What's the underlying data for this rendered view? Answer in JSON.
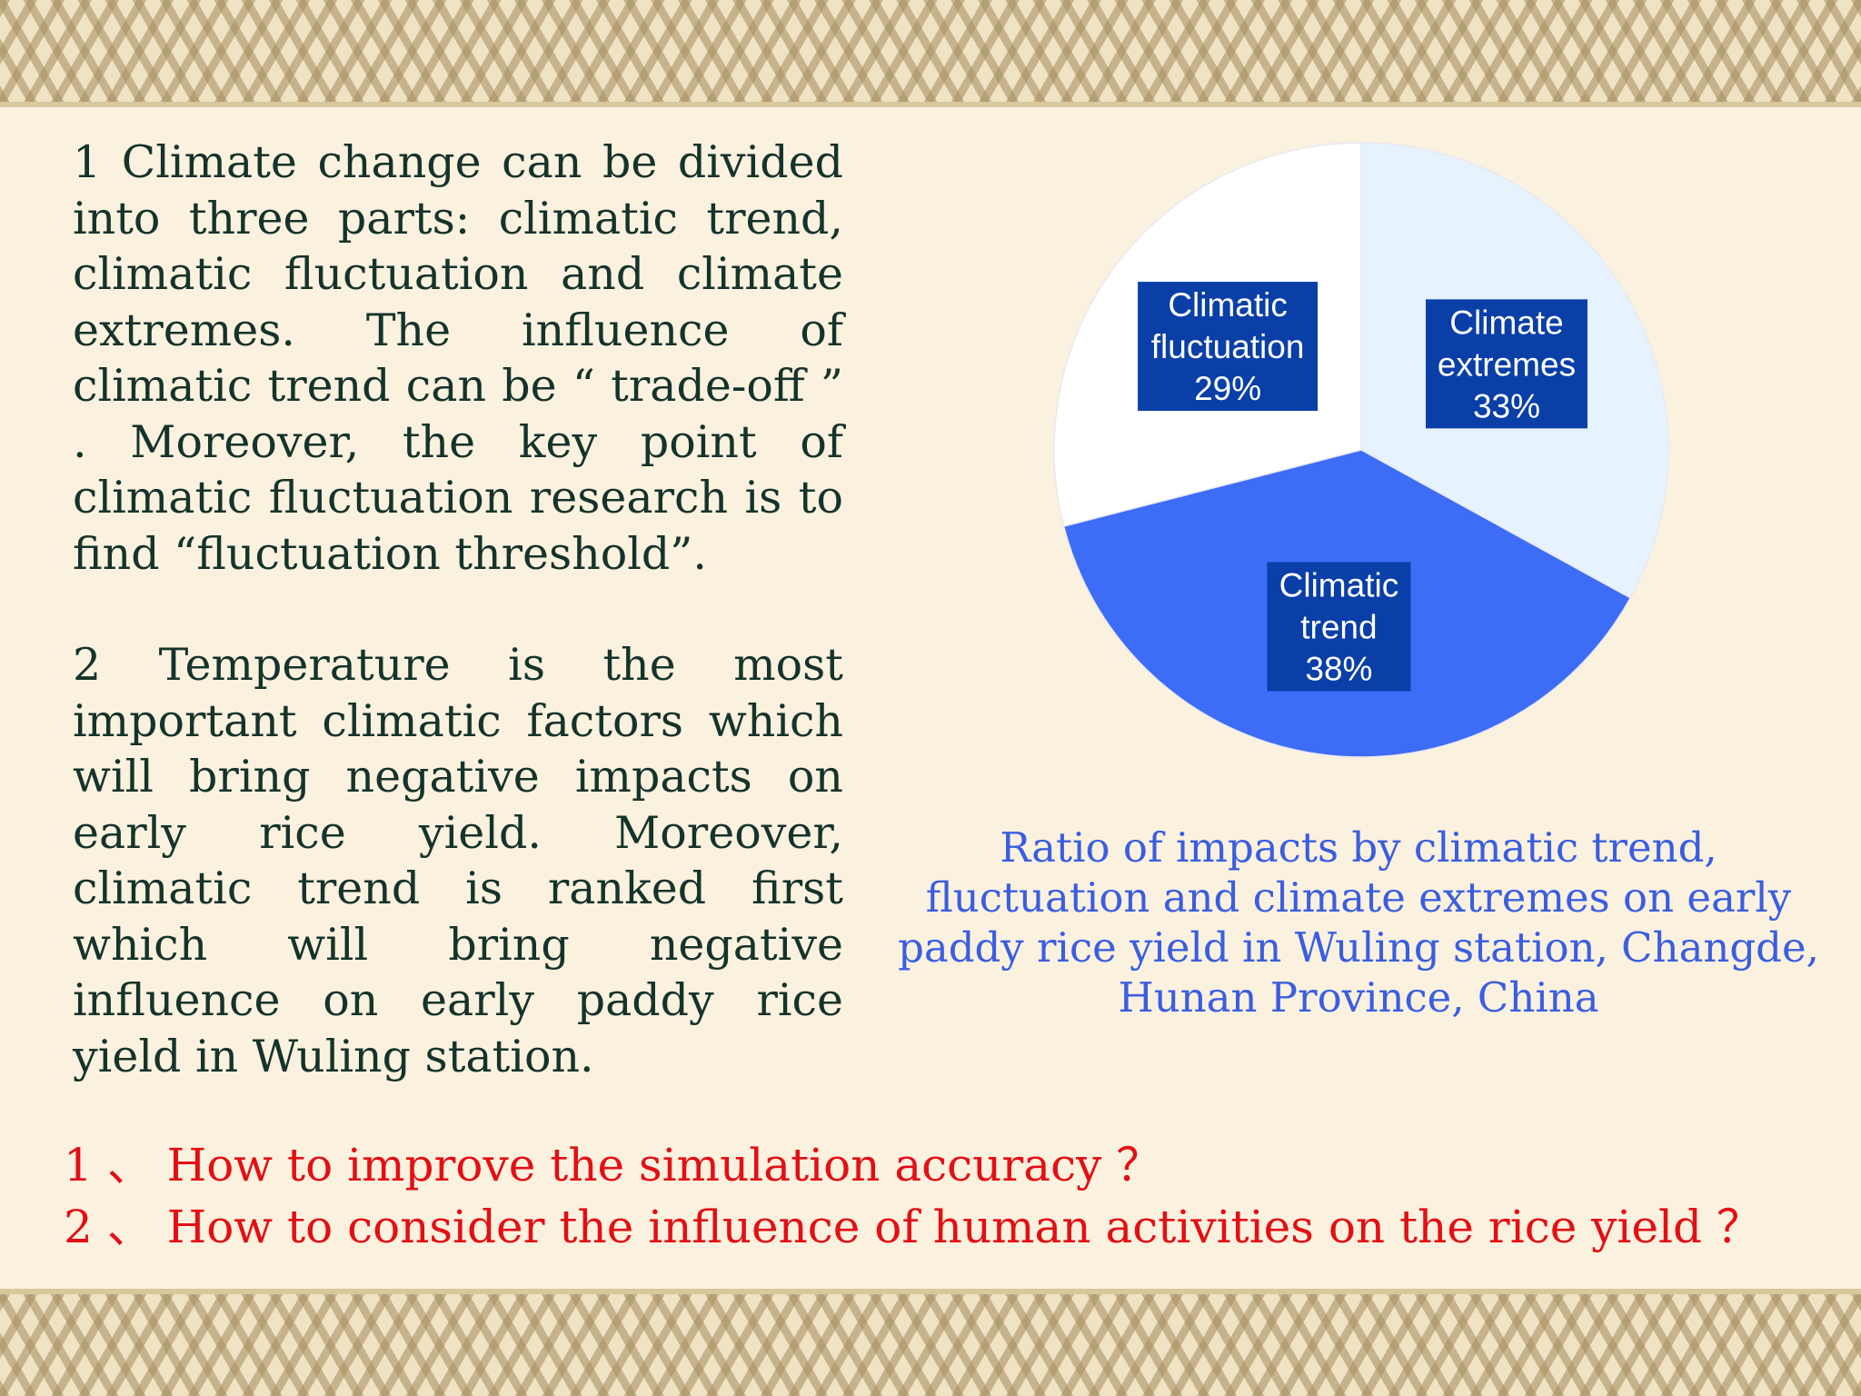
{
  "body_text": {
    "para1": "1 Climate change can be divided into three parts: climatic trend, climatic fluctuation and climate extremes. The influence of climatic trend can be “ trade-off ” . Moreover, the key point of climatic fluctuation research is to find “fluctuation threshold”.",
    "para2": "2 Temperature is the most important climatic factors which will bring negative impacts on early rice yield. Moreover, climatic trend is ranked first which will bring negative influence on early paddy rice yield in Wuling station."
  },
  "chart_data": {
    "type": "pie",
    "slices": [
      {
        "label": [
          "Climate",
          "extremes"
        ],
        "value": 33,
        "value_label": "33%",
        "color": "#e6f2fd"
      },
      {
        "label": [
          "Climatic",
          "trend"
        ],
        "value": 38,
        "value_label": "38%",
        "color": "#3d6cf7"
      },
      {
        "label": [
          "Climatic",
          "fluctuation"
        ],
        "value": 29,
        "value_label": "29%",
        "color": "#ffffff"
      }
    ],
    "label_box_color": "#0a3fa8",
    "caption_lines": [
      "Ratio of impacts by climatic trend,",
      "fluctuation and climate extremes on early",
      "paddy rice yield in Wuling station, Changde,",
      "Hunan Province, China"
    ]
  },
  "questions": [
    "1 、 How to improve the simulation accuracy ？",
    "2 、 How to consider the influence of human activities on the rice yield ？"
  ],
  "colors": {
    "background": "#fbf1df",
    "body_text": "#15332a",
    "caption": "#3a5ee0",
    "questions": "#e30f14"
  }
}
